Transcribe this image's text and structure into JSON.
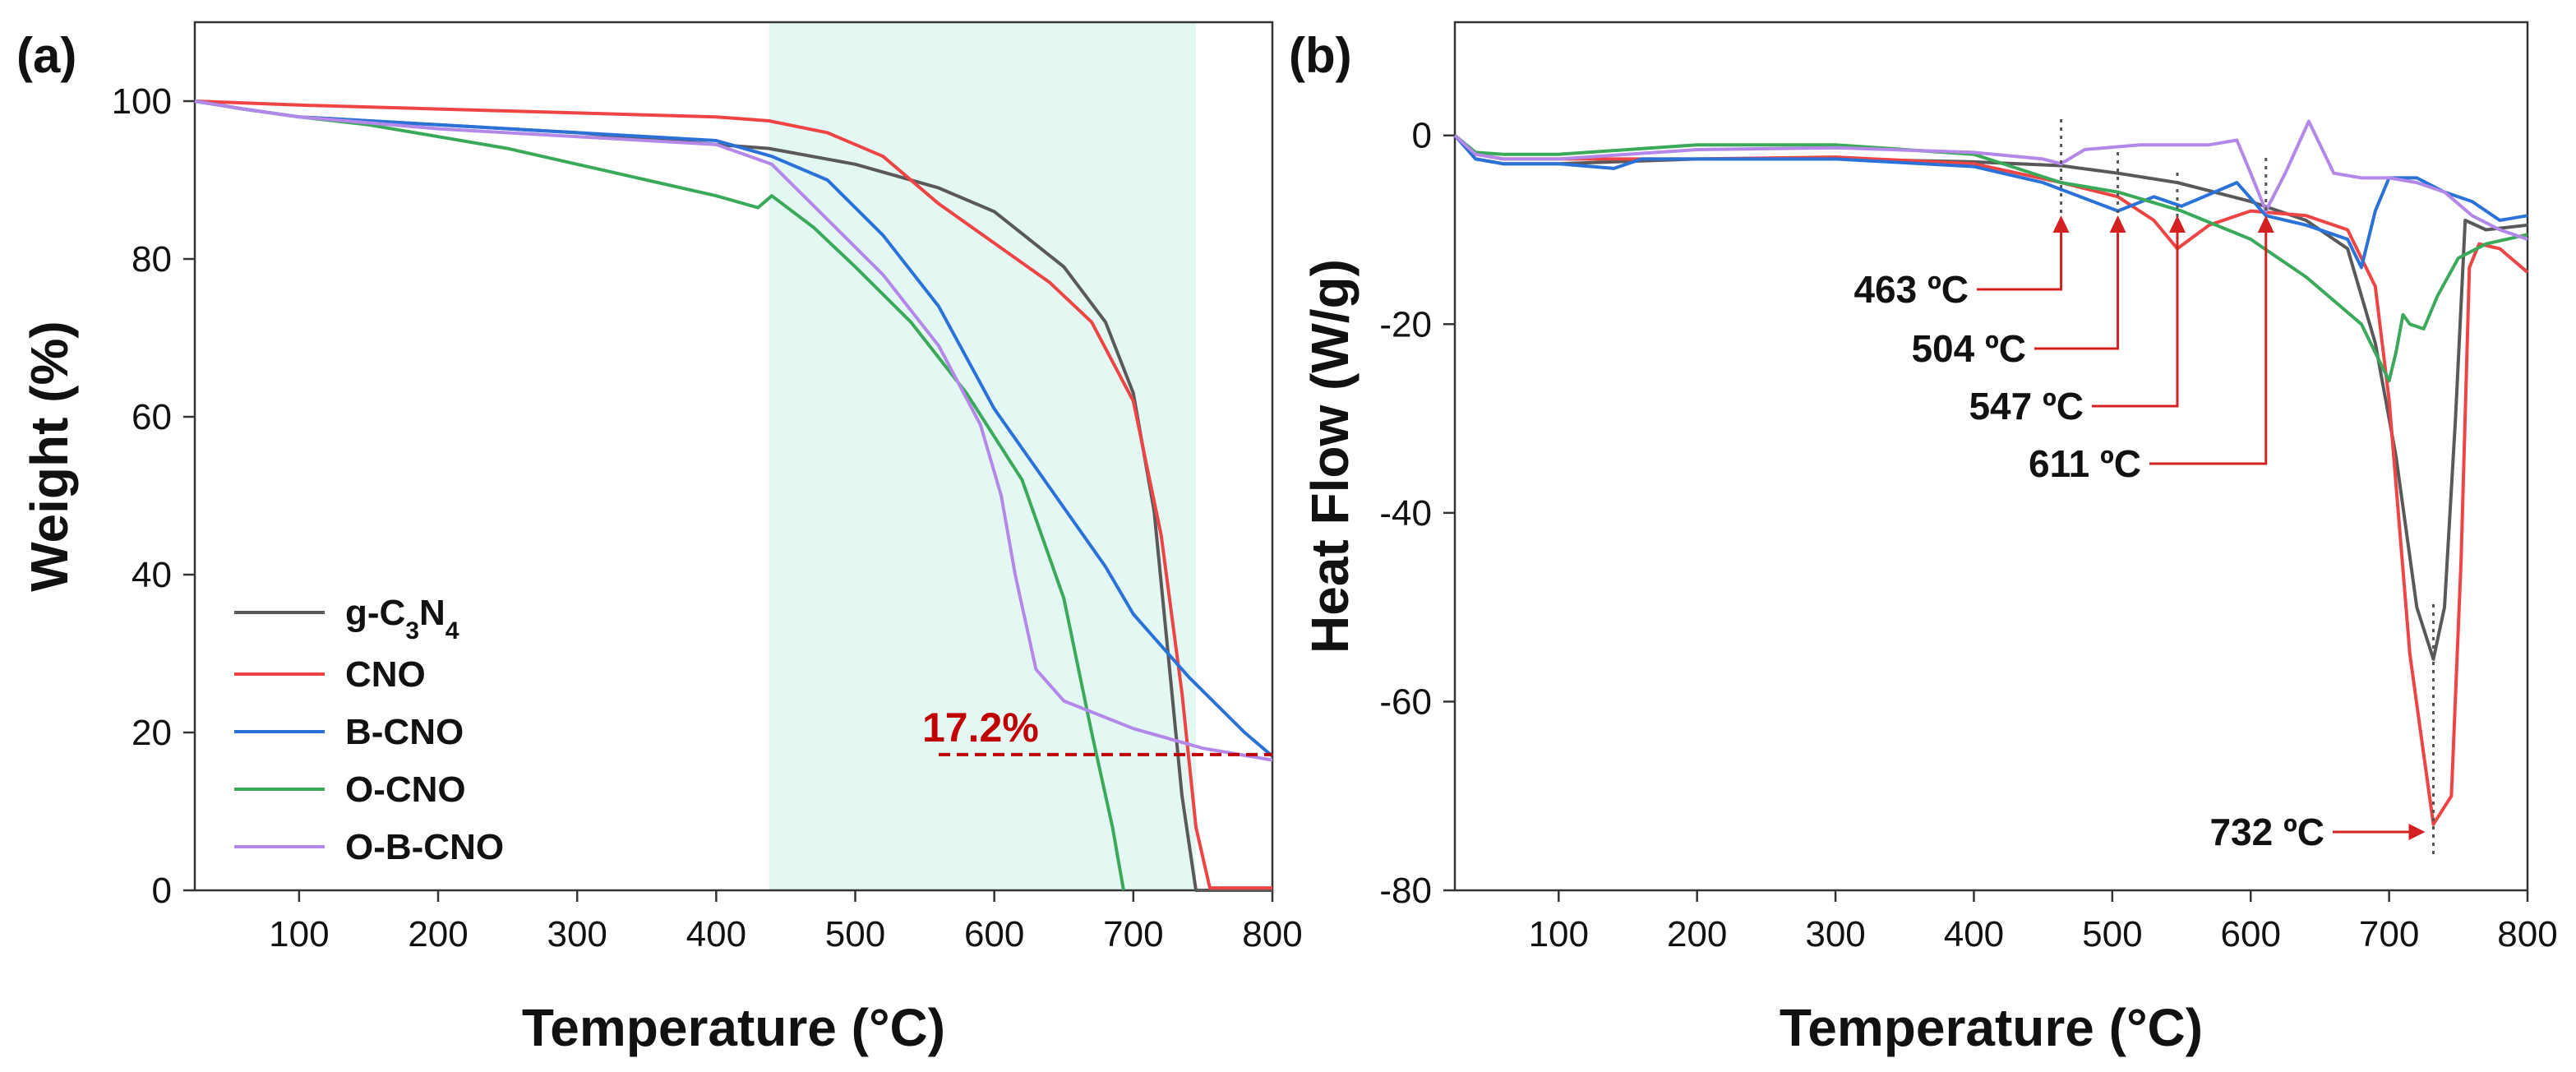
{
  "chart_data": [
    {
      "panel_label": "(a)",
      "type": "line",
      "xlabel": "Temperature (°C)",
      "ylabel": "Weight (%)",
      "xlim": [
        25,
        800
      ],
      "ylim": [
        0,
        110
      ],
      "xticks": [
        100,
        200,
        300,
        400,
        500,
        600,
        700,
        800
      ],
      "yticks": [
        0,
        20,
        40,
        60,
        80,
        100
      ],
      "grid": false,
      "legend_position": "bottom-left",
      "highlight_region": {
        "x": [
          438,
          745
        ],
        "color": "#e3f7f3"
      },
      "annotation": {
        "text": "17.2%",
        "y": 17.2,
        "x_from": 560,
        "x_to": 800,
        "color": "#c00000"
      },
      "series": [
        {
          "name": "g-C3N4",
          "name_main": "g-C",
          "name_sub1": "3",
          "name_mid": "N",
          "name_sub2": "4",
          "color": "#595959",
          "x": [
            25,
            60,
            100,
            200,
            300,
            400,
            438,
            500,
            560,
            600,
            650,
            680,
            700,
            715,
            725,
            735,
            745,
            800
          ],
          "y": [
            100,
            99,
            98,
            97,
            96,
            94.5,
            94,
            92,
            89,
            86,
            79,
            72,
            63,
            48,
            30,
            12,
            0,
            0
          ]
        },
        {
          "name": "CNO",
          "color": "#ee4444",
          "x": [
            25,
            100,
            200,
            300,
            400,
            438,
            480,
            520,
            560,
            600,
            640,
            670,
            700,
            720,
            735,
            745,
            755,
            800
          ],
          "y": [
            100,
            99.5,
            99,
            98.5,
            98,
            97.5,
            96,
            93,
            87,
            82,
            77,
            72,
            62,
            45,
            25,
            8,
            0.3,
            0.3
          ]
        },
        {
          "name": "B-CNO",
          "color": "#2b72d8",
          "x": [
            25,
            60,
            100,
            200,
            300,
            400,
            440,
            480,
            520,
            560,
            600,
            640,
            680,
            700,
            740,
            780,
            800
          ],
          "y": [
            100,
            99,
            98,
            97,
            96,
            95,
            93,
            90,
            83,
            74,
            61,
            51,
            41,
            35,
            27,
            20,
            17
          ]
        },
        {
          "name": "O-CNO",
          "color": "#3aaa5a",
          "x": [
            25,
            60,
            100,
            150,
            200,
            250,
            300,
            350,
            400,
            430,
            440,
            470,
            500,
            540,
            580,
            620,
            650,
            670,
            685,
            693
          ],
          "y": [
            100,
            99,
            98,
            97,
            95.5,
            94,
            92,
            90,
            88,
            86.5,
            88,
            84,
            79,
            72,
            63,
            52,
            37,
            20,
            8,
            0
          ]
        },
        {
          "name": "O-B-CNO",
          "color": "#b388e8",
          "x": [
            25,
            60,
            100,
            200,
            300,
            400,
            440,
            480,
            520,
            560,
            590,
            605,
            615,
            630,
            650,
            700,
            750,
            800
          ],
          "y": [
            100,
            99,
            98,
            96.5,
            95.5,
            94.5,
            92,
            85,
            78,
            69,
            59,
            50,
            40,
            28,
            24,
            20.5,
            18,
            16.5
          ]
        }
      ]
    },
    {
      "panel_label": "(b)",
      "type": "line",
      "xlabel": "Temperature (°C)",
      "ylabel": "Heat Flow (W/g)",
      "xlim": [
        25,
        800
      ],
      "ylim": [
        -80,
        12
      ],
      "xticks": [
        100,
        200,
        300,
        400,
        500,
        600,
        700,
        800
      ],
      "yticks": [
        0,
        -20,
        -40,
        -60,
        -80
      ],
      "grid": false,
      "legend_position": "none",
      "annotations": [
        {
          "text": "463 ºC",
          "x": 463
        },
        {
          "text": "504 ºC",
          "x": 504
        },
        {
          "text": "547 ºC",
          "x": 547
        },
        {
          "text": "611 ºC",
          "x": 611
        },
        {
          "text": "732 ºC",
          "x": 732
        }
      ],
      "series": [
        {
          "name": "g-C3N4",
          "color": "#595959",
          "x": [
            25,
            40,
            60,
            100,
            200,
            300,
            400,
            463,
            504,
            547,
            600,
            640,
            670,
            690,
            705,
            720,
            732,
            740,
            748,
            755,
            770,
            800
          ],
          "y": [
            0,
            -2.5,
            -3,
            -3,
            -2.5,
            -2.5,
            -2.8,
            -3.2,
            -4,
            -5,
            -7,
            -9,
            -12,
            -22,
            -34,
            -50,
            -55.5,
            -50,
            -30,
            -9,
            -10,
            -9.5
          ]
        },
        {
          "name": "CNO",
          "color": "#ee4444",
          "x": [
            25,
            40,
            60,
            100,
            200,
            300,
            400,
            463,
            504,
            530,
            547,
            570,
            600,
            640,
            670,
            690,
            700,
            715,
            732,
            745,
            752,
            758,
            765,
            780,
            800
          ],
          "y": [
            0,
            -2,
            -2.5,
            -2.5,
            -2.5,
            -2.3,
            -3,
            -5,
            -6.5,
            -9,
            -12,
            -9.5,
            -8,
            -8.5,
            -10,
            -16,
            -28,
            -55,
            -73,
            -70,
            -45,
            -14,
            -11.5,
            -12,
            -14.5
          ]
        },
        {
          "name": "B-CNO",
          "color": "#2b72d8",
          "x": [
            25,
            40,
            60,
            100,
            140,
            160,
            200,
            300,
            400,
            450,
            504,
            530,
            550,
            590,
            611,
            640,
            670,
            680,
            690,
            700,
            720,
            740,
            760,
            780,
            800
          ],
          "y": [
            0,
            -2.5,
            -3,
            -3,
            -3.5,
            -2.5,
            -2.5,
            -2.5,
            -3.3,
            -5,
            -8,
            -6.5,
            -7.5,
            -5,
            -8.5,
            -9.5,
            -11,
            -14,
            -8,
            -4.5,
            -4.5,
            -6,
            -7,
            -9,
            -8.5
          ]
        },
        {
          "name": "O-CNO",
          "color": "#3aaa5a",
          "x": [
            25,
            40,
            60,
            100,
            200,
            300,
            400,
            463,
            504,
            550,
            600,
            640,
            680,
            700,
            705,
            710,
            715,
            725,
            735,
            750,
            770,
            800
          ],
          "y": [
            0,
            -1.8,
            -2,
            -2,
            -1,
            -1,
            -2,
            -5,
            -6,
            -8,
            -11,
            -15,
            -20,
            -26,
            -23,
            -19,
            -20,
            -20.5,
            -17,
            -13,
            -11.5,
            -10.5
          ]
        },
        {
          "name": "O-B-CNO",
          "color": "#b388e8",
          "x": [
            25,
            40,
            60,
            100,
            200,
            300,
            400,
            450,
            463,
            480,
            520,
            570,
            590,
            600,
            611,
            625,
            642,
            660,
            680,
            700,
            720,
            740,
            760,
            780,
            800
          ],
          "y": [
            0,
            -2,
            -2.5,
            -2.5,
            -1.5,
            -1.3,
            -1.8,
            -2.5,
            -3,
            -1.5,
            -1,
            -1,
            -0.5,
            -4,
            -8,
            -4,
            1.5,
            -4,
            -4.5,
            -4.5,
            -5,
            -6,
            -8.5,
            -10,
            -11
          ]
        }
      ]
    }
  ]
}
